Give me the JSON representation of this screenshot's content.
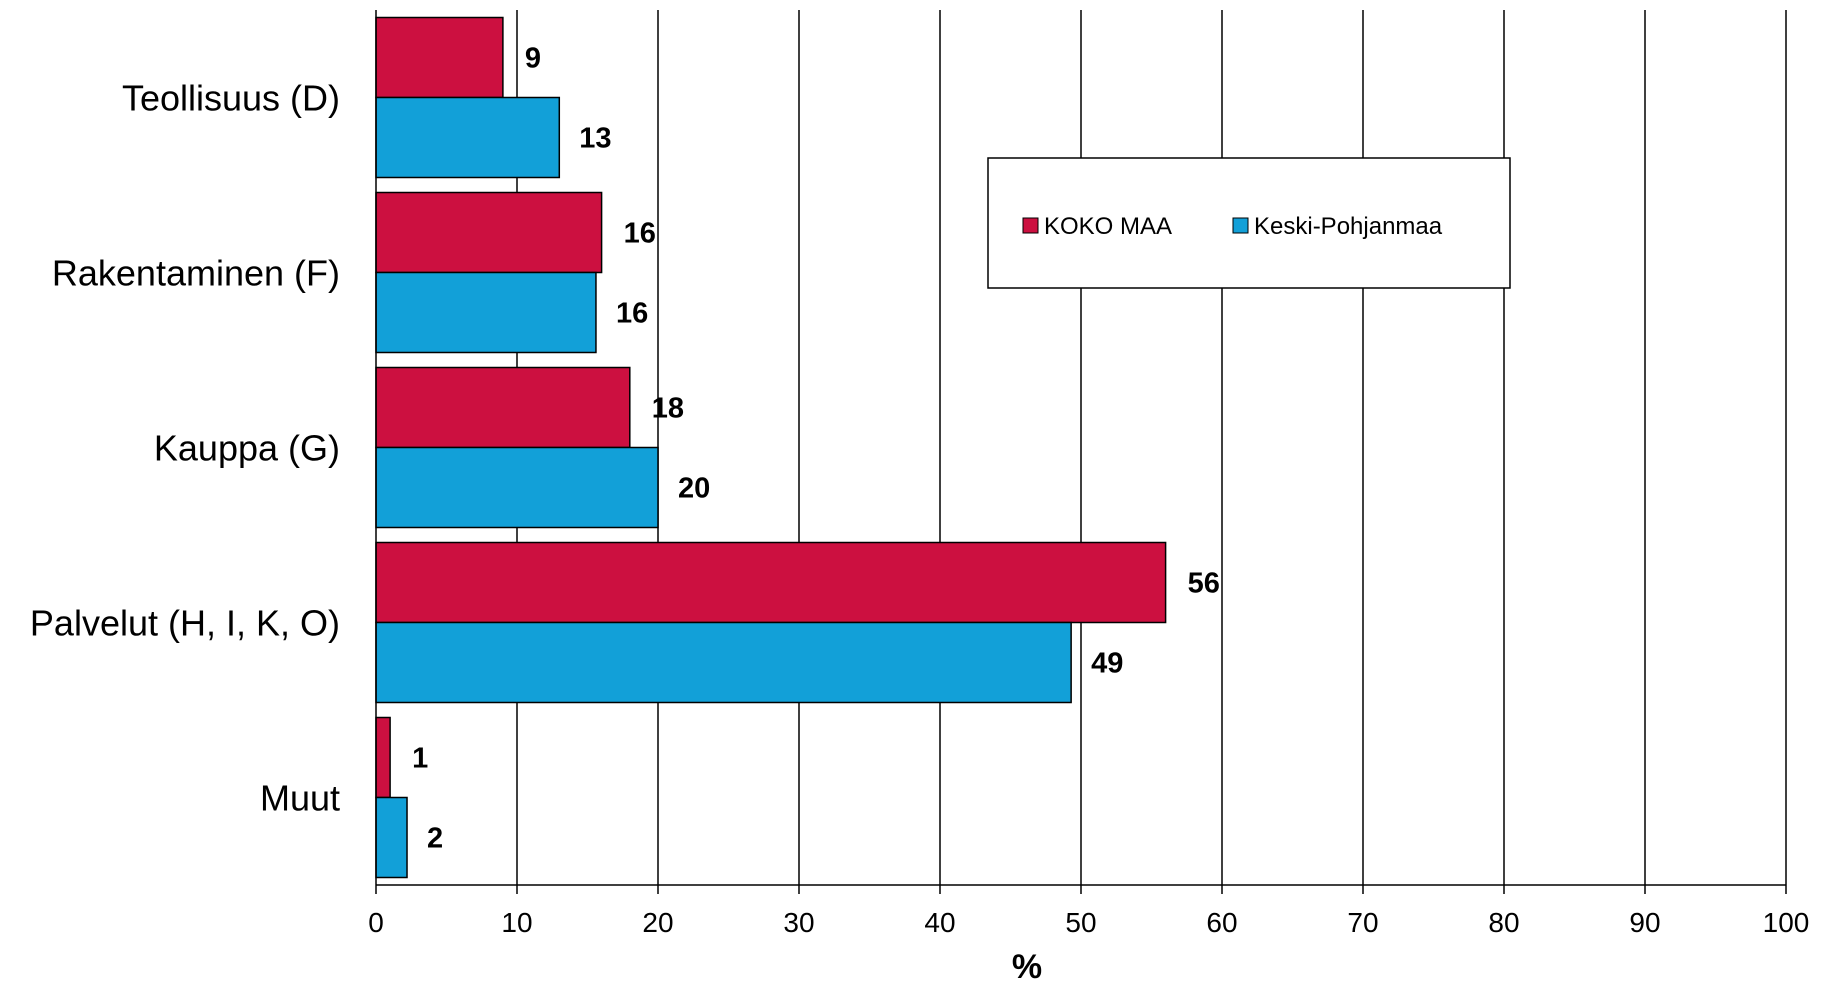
{
  "chart_data": {
    "type": "bar",
    "orientation": "horizontal",
    "categories": [
      "Teollisuus (D)",
      "Rakentaminen (F)",
      "Kauppa (G)",
      "Palvelut (H, I, K, O)",
      "Muut"
    ],
    "series": [
      {
        "name": "KOKO MAA",
        "color": "#cc1040",
        "values": [
          9,
          16,
          18,
          56,
          1
        ],
        "labels": [
          "9",
          "16",
          "18",
          "56",
          "1"
        ]
      },
      {
        "name": "Keski-Pohjanmaa",
        "color": "#12a0d8",
        "values": [
          13,
          15.6,
          20,
          49.3,
          2.2
        ],
        "labels": [
          "13",
          "16",
          "20",
          "49",
          "2"
        ]
      }
    ],
    "xlim": [
      0,
      100
    ],
    "xticks": [
      "0",
      "10",
      "20",
      "30",
      "40",
      "50",
      "60",
      "70",
      "80",
      "90",
      "100"
    ],
    "xlabel": "%",
    "ylabel": "",
    "title": "",
    "grid": true,
    "legend_position": "top-right"
  }
}
